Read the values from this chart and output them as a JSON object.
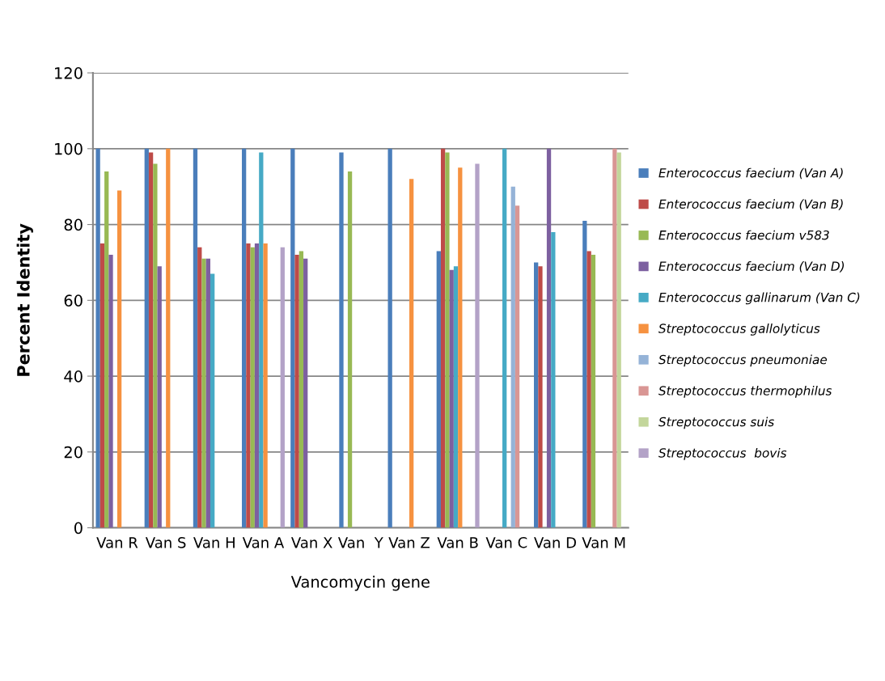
{
  "chart_data": {
    "type": "bar",
    "xlabel": "Vancomycin gene",
    "ylabel": "Percent Identity",
    "categories": [
      "Van R",
      "Van S",
      "Van H",
      "Van A",
      "Van X",
      "Van  Y",
      "Van Z",
      "Van B",
      "Van C",
      "Van D",
      "Van M"
    ],
    "ylim": [
      0,
      120
    ],
    "yticks": [
      0,
      20,
      40,
      60,
      80,
      100,
      120
    ],
    "grid": "y",
    "legend": "right",
    "series": [
      {
        "name": "Enterococcus faecium (Van A)",
        "color": "#4a7ebb",
        "values": [
          100,
          100,
          100,
          100,
          100,
          99,
          100,
          73,
          null,
          70,
          81
        ]
      },
      {
        "name": "Enterococcus faecium (Van B)",
        "color": "#be4b48",
        "values": [
          75,
          99,
          74,
          75,
          72,
          null,
          null,
          100,
          null,
          69,
          73
        ]
      },
      {
        "name": "Enterococcus faecium v583",
        "color": "#98b954",
        "values": [
          94,
          96,
          71,
          74,
          73,
          94,
          null,
          99,
          null,
          null,
          72
        ]
      },
      {
        "name": "Enterococcus faecium (Van D)",
        "color": "#7d60a0",
        "values": [
          72,
          69,
          71,
          75,
          71,
          null,
          null,
          68,
          null,
          100,
          null
        ]
      },
      {
        "name": "Enterococcus gallinarum (Van C)",
        "color": "#46aac5",
        "values": [
          null,
          null,
          67,
          99,
          null,
          null,
          null,
          69,
          100,
          78,
          null
        ]
      },
      {
        "name": "Streptococcus gallolyticus",
        "color": "#f69240",
        "values": [
          89,
          100,
          null,
          75,
          null,
          null,
          92,
          95,
          null,
          null,
          null
        ]
      },
      {
        "name": "Streptococcus pneumoniae",
        "color": "#95b3d7",
        "values": [
          null,
          null,
          null,
          null,
          null,
          null,
          null,
          null,
          90,
          null,
          null
        ]
      },
      {
        "name": "Streptococcus thermophilus",
        "color": "#d99694",
        "values": [
          null,
          null,
          null,
          null,
          null,
          null,
          null,
          null,
          85,
          null,
          100
        ]
      },
      {
        "name": "Streptococcus suis",
        "color": "#c3d69b",
        "values": [
          null,
          null,
          null,
          null,
          null,
          null,
          null,
          null,
          null,
          null,
          99
        ]
      },
      {
        "name": "Streptococcus  bovis",
        "color": "#b3a2c7",
        "values": [
          null,
          null,
          null,
          74,
          null,
          null,
          null,
          96,
          null,
          null,
          null
        ]
      }
    ]
  }
}
